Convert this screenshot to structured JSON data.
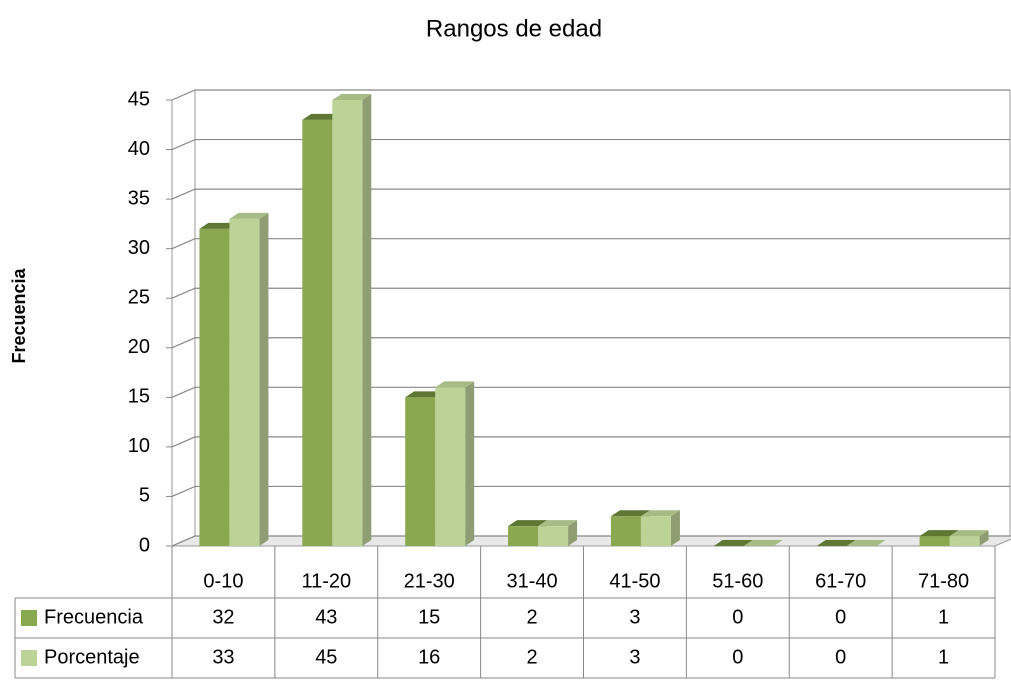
{
  "chart_data": {
    "type": "bar",
    "title": "Rangos de edad",
    "y_label": "Frecuencia",
    "categories": [
      "0-10",
      "11-20",
      "21-30",
      "31-40",
      "41-50",
      "51-60",
      "61-70",
      "71-80"
    ],
    "series": [
      {
        "name": "Frecuencia",
        "color": "#8aa84f",
        "values": [
          32,
          43,
          15,
          2,
          3,
          0,
          0,
          1
        ]
      },
      {
        "name": "Porcentaje",
        "color": "#bcd397",
        "values": [
          33,
          45,
          16,
          2,
          3,
          0,
          0,
          1
        ]
      }
    ],
    "ylim": [
      0,
      45
    ],
    "yticks": [
      0,
      5,
      10,
      15,
      20,
      25,
      30,
      35,
      40,
      45
    ],
    "grid": true,
    "data_table": true
  }
}
